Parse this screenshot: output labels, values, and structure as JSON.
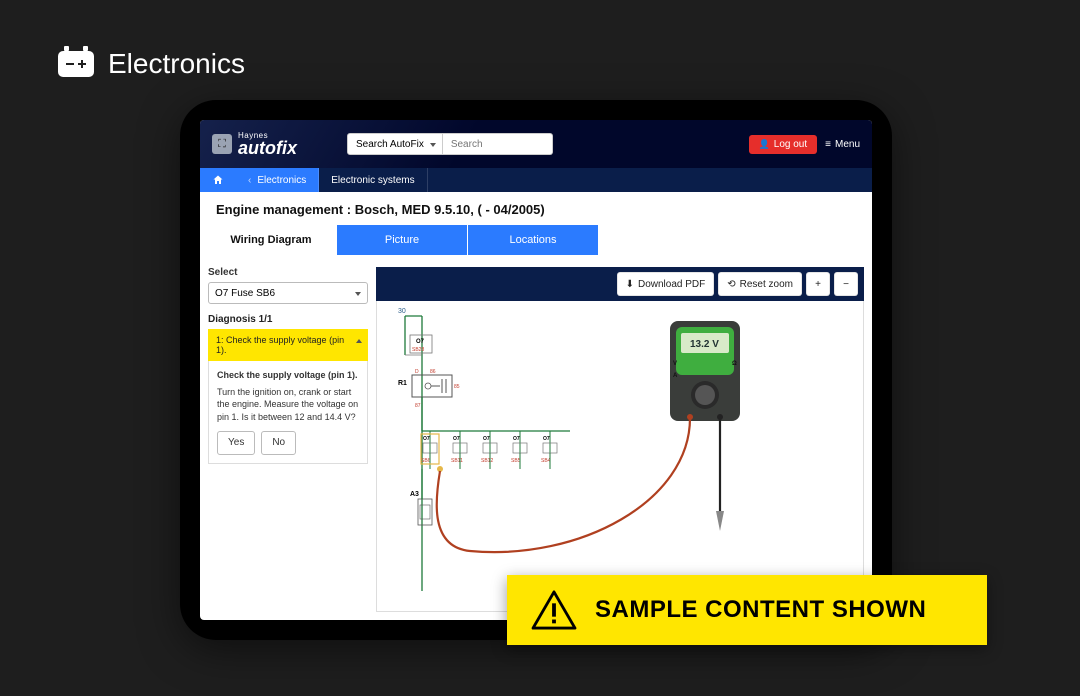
{
  "colors": {
    "page_bg": "#1e1e1e",
    "tablet_bezel": "#000000",
    "header_bg": "#0a1e4a",
    "blue_accent": "#2b7bff",
    "logout_red": "#e62e2b",
    "highlight_yellow": "#ffe600",
    "banner_yellow": "#ffe600",
    "text_light": "#ffffff",
    "text_dark": "#111111"
  },
  "page_header": {
    "title": "Electronics"
  },
  "app": {
    "logo_top": "Haynes",
    "logo_bottom": "autofix",
    "search": {
      "dropdown": "Search AutoFix",
      "placeholder": "Search"
    },
    "logout_label": "Log out",
    "menu_label": "Menu",
    "breadcrumbs": {
      "back_label": "Electronics",
      "current_label": "Electronic systems"
    },
    "title": "Engine management :  Bosch, MED 9.5.10, ( - 04/2005)",
    "tabs": [
      {
        "label": "Wiring Diagram",
        "active": true
      },
      {
        "label": "Picture",
        "active": false
      },
      {
        "label": "Locations",
        "active": false
      }
    ],
    "left_panel": {
      "select_label": "Select",
      "select_value": "O7  Fuse  SB6",
      "diagnosis_heading": "Diagnosis 1/1",
      "step_title": "1: Check the supply voltage (pin 1).",
      "step_body_heading": "Check the supply voltage (pin 1).",
      "step_body_text": "Turn the ignition on, crank or start the engine. Measure the voltage on pin 1. Is it between 12 and 14.4 V?",
      "yes_label": "Yes",
      "no_label": "No"
    },
    "toolbar": {
      "download_label": "Download PDF",
      "reset_label": "Reset zoom",
      "zoom_in": "+",
      "zoom_out": "−"
    },
    "diagram": {
      "top_right_num": "30",
      "r1_label": "R1",
      "r1_pins": [
        "D",
        "86",
        "85"
      ],
      "r1_vert": "87",
      "o7_main": "O7",
      "sb28": "SB28",
      "a3_label": "A3",
      "fuse_blocks": [
        {
          "top": "O7",
          "sub": "SB6"
        },
        {
          "top": "O7",
          "sub": "SB11"
        },
        {
          "top": "O7",
          "sub": "SB12"
        },
        {
          "top": "O7",
          "sub": "SB5"
        },
        {
          "top": "O7",
          "sub": "SB4"
        }
      ],
      "multimeter_reading": "13.2 V",
      "multimeter_body": "#3a3d3a",
      "multimeter_screen": "#3fae3f",
      "multimeter_lcd": "#d8eac8",
      "wire_red": "#b04020",
      "wire_black": "#222222",
      "wire_green": "#1e7a3a",
      "fuse_red": "#b0251f",
      "pin_text": "#c23b2b"
    }
  },
  "sample_banner": {
    "label": "SAMPLE CONTENT SHOWN"
  }
}
